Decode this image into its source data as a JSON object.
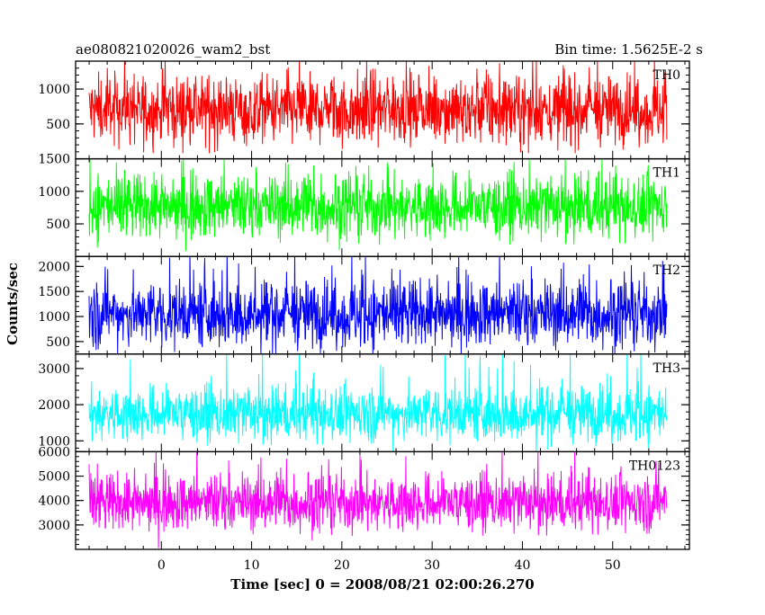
{
  "chart_data": {
    "type": "line",
    "title": "ae080821020026_wam2_bst",
    "subtitle": "Bin time: 1.5625E-2 s",
    "xlabel": "Time [sec] 0 = 2008/08/21 02:00:26.270",
    "ylabel": "Counts/sec",
    "xlim": [
      -9.5,
      58.5
    ],
    "x_ticks": [
      0,
      10,
      20,
      30,
      40,
      50
    ],
    "x_range": [
      -8,
      56
    ],
    "panels": [
      {
        "name": "TH0",
        "color": "#ff0000",
        "ylim": [
          0,
          1400
        ],
        "y_ticks": [
          500,
          1000
        ],
        "y_tick_labels": [
          "500",
          "1000"
        ],
        "mean": 700,
        "spread": 240,
        "min": 80,
        "max": 1400
      },
      {
        "name": "TH1",
        "color": "#00ff00",
        "ylim": [
          0,
          1500
        ],
        "y_ticks": [
          500,
          1000,
          1500
        ],
        "y_tick_labels": [
          "500",
          "1000",
          "1500"
        ],
        "mean": 760,
        "spread": 250,
        "min": 80,
        "max": 1500
      },
      {
        "name": "TH2",
        "color": "#0000ff",
        "ylim": [
          250,
          2200
        ],
        "y_ticks": [
          500,
          1000,
          1500,
          2000
        ],
        "y_tick_labels": [
          "500",
          "1000",
          "1500",
          "2000"
        ],
        "mean": 1050,
        "spread": 330,
        "min": 250,
        "max": 2200
      },
      {
        "name": "TH3",
        "color": "#00ffff",
        "ylim": [
          700,
          3400
        ],
        "y_ticks": [
          1000,
          2000,
          3000
        ],
        "y_tick_labels": [
          "1000",
          "2000",
          "3000"
        ],
        "mean": 1750,
        "spread": 380,
        "min": 700,
        "max": 3400
      },
      {
        "name": "TH0123",
        "color": "#ff00ff",
        "ylim": [
          2000,
          6000
        ],
        "y_ticks": [
          3000,
          4000,
          5000,
          6000
        ],
        "y_tick_labels": [
          "3000",
          "4000",
          "5000",
          "6000"
        ],
        "mean": 3900,
        "spread": 580,
        "min": 2000,
        "max": 6000
      }
    ],
    "grid": false,
    "legend": "none"
  }
}
